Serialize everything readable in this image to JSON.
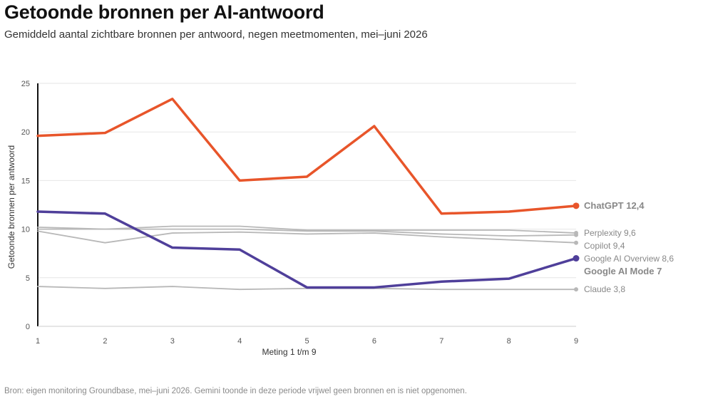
{
  "page": {
    "title": "Getoonde bronnen per AI-antwoord",
    "subtitle": "Gemiddeld aantal zichtbare bronnen per antwoord, negen meetmomenten, mei–juni 2026",
    "source": "Bron: eigen monitoring Groundbase, mei–juni 2026. Gemini toonde in deze periode vrijwel geen bronnen en is niet opgenomen."
  },
  "chart_data": {
    "type": "line",
    "xlabel": "Meting 1 t/m 9",
    "ylabel": "Getoonde bronnen per antwoord",
    "x": [
      1,
      2,
      3,
      4,
      5,
      6,
      7,
      8,
      9
    ],
    "ylim": [
      0,
      25
    ],
    "yticks": [
      0,
      5,
      10,
      15,
      20,
      25
    ],
    "grid": true,
    "legend": "direct labels at line ends",
    "series": [
      {
        "name": "ChatGPT",
        "end_label": "ChatGPT 12,4",
        "values": [
          19.6,
          19.9,
          23.4,
          15.0,
          15.4,
          20.6,
          11.6,
          11.8,
          12.4
        ],
        "color": "#e8552a",
        "highlight": true
      },
      {
        "name": "Perplexity",
        "end_label": "Perplexity 9,6",
        "values": [
          10.2,
          10.0,
          10.3,
          10.3,
          9.9,
          9.9,
          9.9,
          9.9,
          9.6
        ],
        "color": "#b8b8b8",
        "highlight": false
      },
      {
        "name": "Copilot",
        "end_label": "Copilot 9,4",
        "values": [
          10.0,
          10.0,
          10.0,
          10.0,
          9.8,
          9.8,
          9.5,
          9.3,
          9.4
        ],
        "color": "#b8b8b8",
        "highlight": false
      },
      {
        "name": "Google AI Overview",
        "end_label": "Google AI Overview 8,6",
        "values": [
          9.8,
          8.6,
          9.6,
          9.7,
          9.5,
          9.6,
          9.2,
          8.9,
          8.6
        ],
        "color": "#b8b8b8",
        "highlight": false
      },
      {
        "name": "Google AI Mode",
        "end_label": "Google AI Mode 7",
        "values": [
          11.8,
          11.6,
          8.1,
          7.9,
          4.0,
          4.0,
          4.6,
          4.9,
          7.0
        ],
        "color": "#4f3f9a",
        "highlight": true
      },
      {
        "name": "Claude",
        "end_label": "Claude 3,8",
        "values": [
          4.1,
          3.9,
          4.1,
          3.8,
          3.9,
          3.9,
          3.8,
          3.8,
          3.8
        ],
        "color": "#b8b8b8",
        "highlight": false
      }
    ]
  }
}
